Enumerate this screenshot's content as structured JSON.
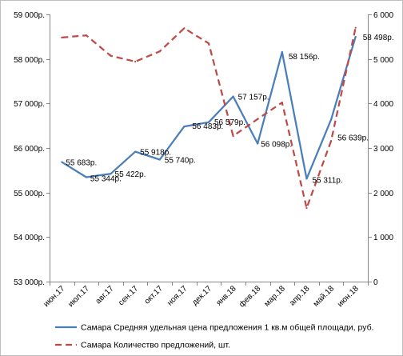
{
  "chart_data": {
    "type": "line",
    "categories": [
      "июн.17",
      "июл.17",
      "авг.17",
      "сен.17",
      "окт.17",
      "ноя.17",
      "дек.17",
      "янв.18",
      "фев.18",
      "мар.18",
      "апр.18",
      "май.18",
      "июн.18"
    ],
    "series": [
      {
        "name": "Самара Средняя удельная цена предложения 1 кв.м общей площади, руб.",
        "axis": "left",
        "color": "#4a7ebb",
        "style": "solid",
        "values": [
          55683,
          55344,
          55422,
          55918,
          55740,
          56483,
          56579,
          57157,
          56098,
          58156,
          55311,
          56639,
          58498
        ],
        "data_labels": [
          "55 683р.",
          "55 344р.",
          "55 422р.",
          "55 918р.",
          "55 740р.",
          "56 483р.",
          "56 579р.",
          "57 157р.",
          "56 098р.",
          "58 156р.",
          "55 311р.",
          "56 639р.",
          "58 498р."
        ]
      },
      {
        "name": "Самара Количество предложений, шт.",
        "axis": "right",
        "color": "#be4b48",
        "style": "dashed",
        "values": [
          5480,
          5530,
          5070,
          4940,
          5170,
          5690,
          5350,
          3270,
          3650,
          4020,
          1650,
          3160,
          5700
        ]
      }
    ],
    "y_left": {
      "range": [
        53000,
        59000
      ],
      "ticks": [
        59000,
        58000,
        57000,
        56000,
        55000,
        54000,
        53000
      ],
      "tick_labels": [
        "59 000р.",
        "58 000р.",
        "57 000р.",
        "56 000р.",
        "55 000р.",
        "54 000р.",
        "53 000р."
      ]
    },
    "y_right": {
      "range": [
        0,
        6000
      ],
      "ticks": [
        6000,
        5000,
        4000,
        3000,
        2000,
        1000,
        0
      ],
      "tick_labels": [
        "6 000",
        "5 000",
        "4 000",
        "3 000",
        "2 000",
        "1 000",
        "0"
      ]
    },
    "grid": false,
    "legend": {
      "placement": "bottom"
    }
  }
}
